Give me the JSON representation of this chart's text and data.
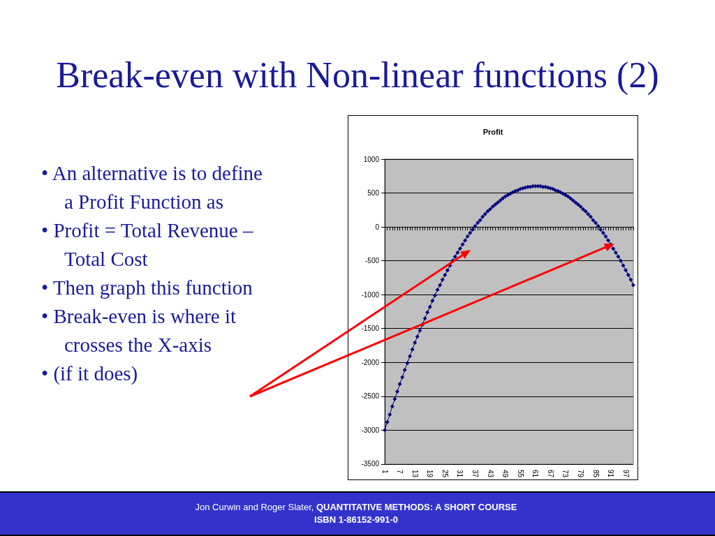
{
  "chart_data": [
    {
      "type": "other",
      "title": "Break-even with Non-linear functions (2)",
      "annotations": [
        "• An alternative is to define a Profit Function as",
        "• Profit = Total Revenue – Total Cost",
        "• Then graph this function",
        "• Break-even is where it crosses the X-axis",
        "• (if it does)"
      ]
    },
    {
      "type": "line",
      "title": "Profit",
      "categories": [
        "1",
        null,
        null,
        null,
        null,
        null,
        "7",
        null,
        null,
        null,
        null,
        null,
        "13",
        null,
        null,
        null,
        null,
        null,
        "19",
        null,
        null,
        null,
        null,
        null,
        "25",
        null,
        null,
        null,
        null,
        null,
        "31",
        null,
        null,
        null,
        null,
        null,
        "37",
        null,
        null,
        null,
        null,
        null,
        "43",
        null,
        null,
        null,
        null,
        null,
        "49",
        null,
        null,
        null,
        null,
        null,
        "55",
        null,
        null,
        null,
        null,
        null,
        "61",
        null,
        null,
        null,
        null,
        null,
        "67",
        null,
        null,
        null,
        null,
        null,
        "73",
        null,
        null,
        null,
        null,
        null,
        "79",
        null,
        null,
        null,
        null,
        null,
        "85",
        null,
        null,
        null,
        null,
        null,
        "91",
        null,
        null,
        null,
        null,
        null,
        "97",
        null,
        null,
        null
      ],
      "series": [
        {
          "color": "#000080",
          "values": [
            -3000,
            -2880,
            -2770,
            -2650,
            -2540,
            -2430,
            -2320,
            -2220,
            -2110,
            -2010,
            -1910,
            -1810,
            -1710,
            -1620,
            -1530,
            -1440,
            -1350,
            -1260,
            -1180,
            -1090,
            -1010,
            -930,
            -860,
            -780,
            -710,
            -640,
            -570,
            -500,
            -440,
            -380,
            -320,
            -260,
            -200,
            -140,
            -90,
            -40,
            10,
            60,
            100,
            150,
            190,
            230,
            260,
            300,
            330,
            360,
            390,
            420,
            450,
            470,
            490,
            510,
            530,
            540,
            560,
            570,
            580,
            590,
            590,
            600,
            600,
            600,
            600,
            590,
            590,
            580,
            570,
            560,
            540,
            530,
            510,
            490,
            470,
            450,
            420,
            390,
            360,
            330,
            300,
            260,
            230,
            190,
            150,
            100,
            60,
            10,
            -40,
            -90,
            -140,
            -200,
            -260,
            -320,
            -380,
            -440,
            -500,
            -570,
            -640,
            -710,
            -780,
            -860
          ]
        }
      ],
      "ylim": [
        -3500,
        1000
      ],
      "yticks": [
        -3500,
        -3000,
        -2500,
        -2000,
        -1500,
        -1000,
        -500,
        0,
        500,
        1000
      ],
      "grid": "y",
      "marker": "diamond",
      "line_style": "solid"
    },
    {
      "type": "other",
      "annotations": [
        "Jon Curwin and Roger Slater,",
        "QUANTITATIVE METHODS: A SHORT COURSE",
        "ISBN 1-86152-991-0"
      ]
    }
  ]
}
